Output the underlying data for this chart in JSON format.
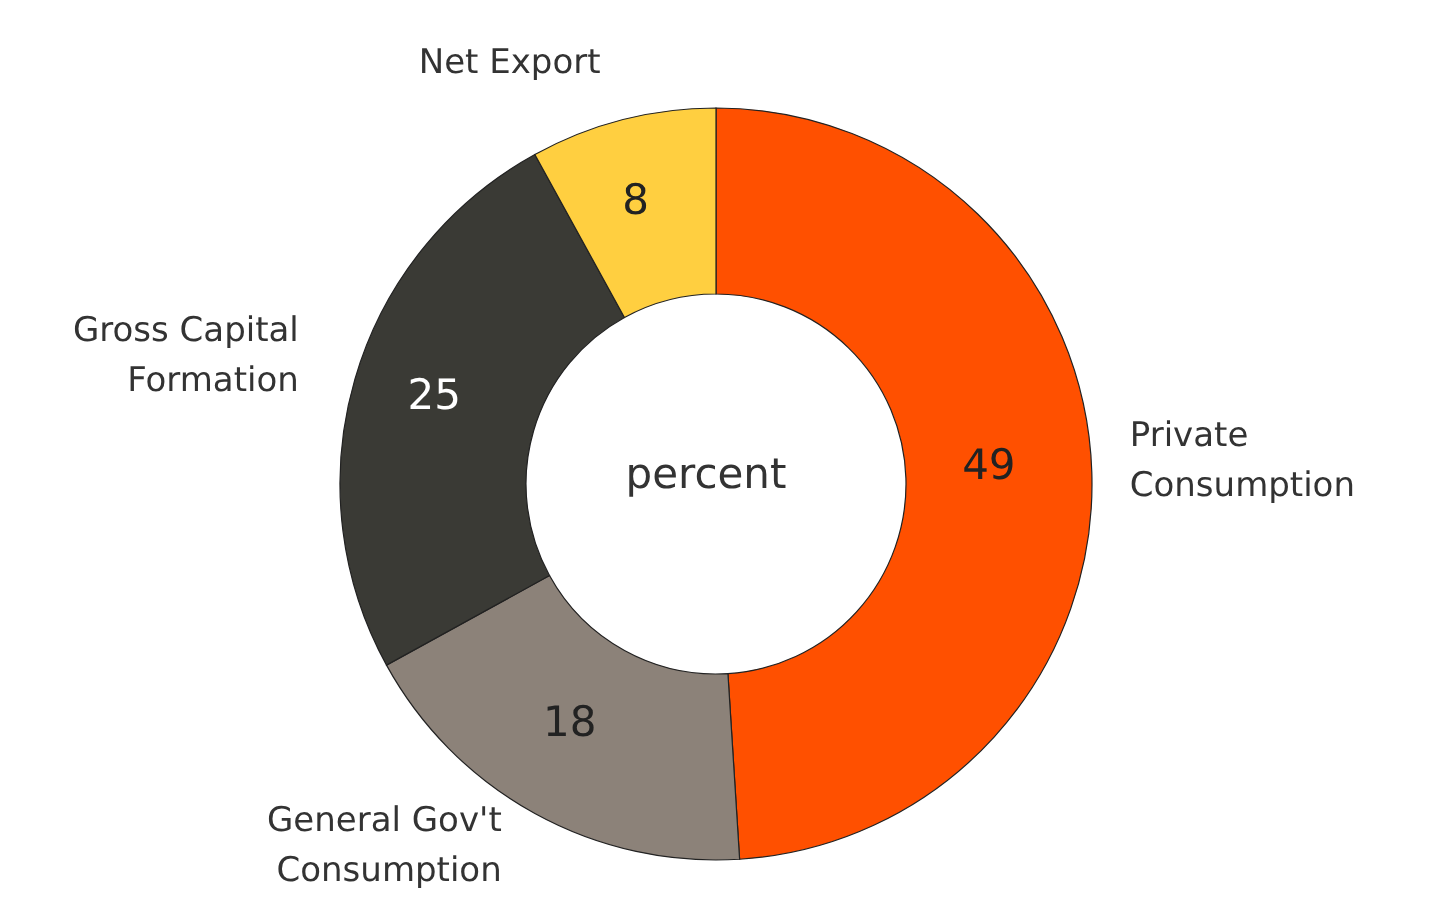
{
  "chart_data": {
    "type": "donut",
    "categories": [
      "Private Consumption",
      "General Gov't Consumption",
      "Gross Capital Formation",
      "Net Export"
    ],
    "values": [
      49,
      18,
      25,
      8
    ],
    "colors": [
      "#ff5000",
      "#8c8279",
      "#3a3a35",
      "#ffcf40"
    ],
    "data_labels": true,
    "annotations": [
      "percent"
    ]
  }
}
